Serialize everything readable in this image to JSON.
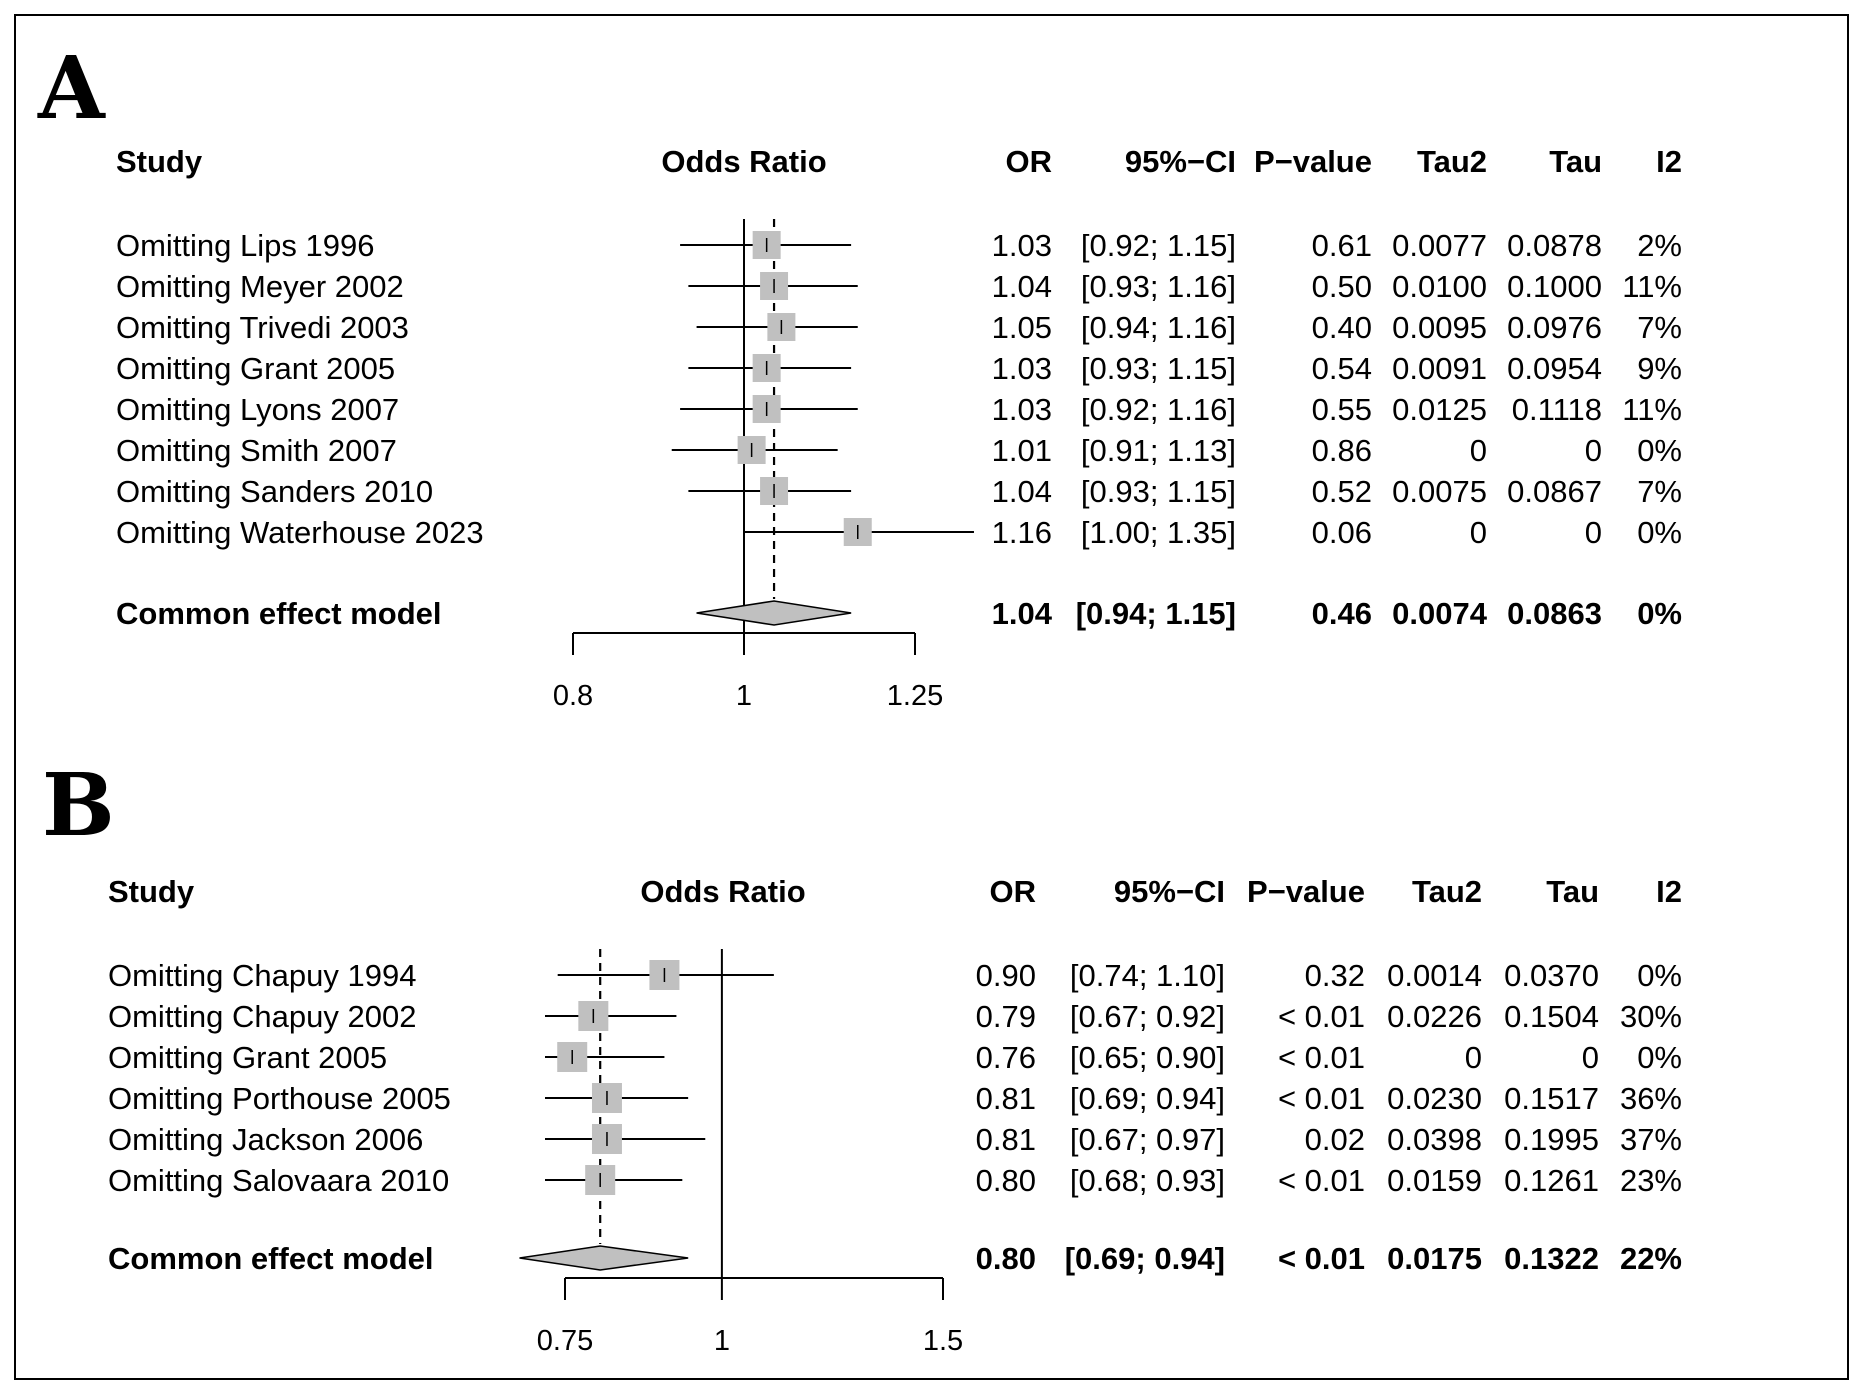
{
  "chart_data": [
    {
      "type": "forest",
      "panel": "A",
      "headers": {
        "study": "Study",
        "effect": "Odds Ratio",
        "or": "OR",
        "ci": "95%−CI",
        "p": "P−value",
        "tau2": "Tau2",
        "tau": "Tau",
        "i2": "I2"
      },
      "xscale": "log",
      "xlim": [
        0.8,
        1.25
      ],
      "xticks": [
        0.8,
        1,
        1.25
      ],
      "xtick_labels": [
        "0.8",
        "1",
        "1.25"
      ],
      "null_value": 1,
      "rows": [
        {
          "label": "Omitting Lips 1996",
          "or": 1.03,
          "lo": 0.92,
          "hi": 1.15,
          "or_text": "1.03",
          "ci_text": "[0.92; 1.15]",
          "p_text": "0.61",
          "tau2_text": "0.0077",
          "tau_text": "0.0878",
          "i2_text": "2%"
        },
        {
          "label": "Omitting Meyer 2002",
          "or": 1.04,
          "lo": 0.93,
          "hi": 1.16,
          "or_text": "1.04",
          "ci_text": "[0.93; 1.16]",
          "p_text": "0.50",
          "tau2_text": "0.0100",
          "tau_text": "0.1000",
          "i2_text": "11%"
        },
        {
          "label": "Omitting Trivedi 2003",
          "or": 1.05,
          "lo": 0.94,
          "hi": 1.16,
          "or_text": "1.05",
          "ci_text": "[0.94; 1.16]",
          "p_text": "0.40",
          "tau2_text": "0.0095",
          "tau_text": "0.0976",
          "i2_text": "7%"
        },
        {
          "label": "Omitting Grant 2005",
          "or": 1.03,
          "lo": 0.93,
          "hi": 1.15,
          "or_text": "1.03",
          "ci_text": "[0.93; 1.15]",
          "p_text": "0.54",
          "tau2_text": "0.0091",
          "tau_text": "0.0954",
          "i2_text": "9%"
        },
        {
          "label": "Omitting Lyons 2007",
          "or": 1.03,
          "lo": 0.92,
          "hi": 1.16,
          "or_text": "1.03",
          "ci_text": "[0.92; 1.16]",
          "p_text": "0.55",
          "tau2_text": "0.0125",
          "tau_text": "0.1118",
          "i2_text": "11%"
        },
        {
          "label": "Omitting Smith 2007",
          "or": 1.01,
          "lo": 0.91,
          "hi": 1.13,
          "or_text": "1.01",
          "ci_text": "[0.91; 1.13]",
          "p_text": "0.86",
          "tau2_text": "0",
          "tau_text": "0",
          "i2_text": "0%"
        },
        {
          "label": "Omitting Sanders 2010",
          "or": 1.04,
          "lo": 0.93,
          "hi": 1.15,
          "or_text": "1.04",
          "ci_text": "[0.93; 1.15]",
          "p_text": "0.52",
          "tau2_text": "0.0075",
          "tau_text": "0.0867",
          "i2_text": "7%"
        },
        {
          "label": "Omitting Waterhouse 2023",
          "or": 1.16,
          "lo": 1.0,
          "hi": 1.35,
          "or_text": "1.16",
          "ci_text": "[1.00; 1.35]",
          "p_text": "0.06",
          "tau2_text": "0",
          "tau_text": "0",
          "i2_text": "0%"
        }
      ],
      "summary": {
        "label": "Common effect model",
        "or": 1.04,
        "lo": 0.94,
        "hi": 1.15,
        "or_text": "1.04",
        "ci_text": "[0.94; 1.15]",
        "p_text": "0.46",
        "tau2_text": "0.0074",
        "tau_text": "0.0863",
        "i2_text": "0%"
      }
    },
    {
      "type": "forest",
      "panel": "B",
      "headers": {
        "study": "Study",
        "effect": "Odds Ratio",
        "or": "OR",
        "ci": "95%−CI",
        "p": "P−value",
        "tau2": "Tau2",
        "tau": "Tau",
        "i2": "I2"
      },
      "xscale": "log",
      "xlim": [
        0.75,
        1.5
      ],
      "xticks": [
        0.75,
        1,
        1.5
      ],
      "xtick_labels": [
        "0.75",
        "1",
        "1.5"
      ],
      "null_value": 1,
      "rows": [
        {
          "label": "Omitting Chapuy 1994",
          "or": 0.9,
          "lo": 0.74,
          "hi": 1.1,
          "or_text": "0.90",
          "ci_text": "[0.74; 1.10]",
          "p_text": "0.32",
          "tau2_text": "0.0014",
          "tau_text": "0.0370",
          "i2_text": "0%"
        },
        {
          "label": "Omitting Chapuy 2002",
          "or": 0.79,
          "lo": 0.67,
          "hi": 0.92,
          "or_text": "0.79",
          "ci_text": "[0.67; 0.92]",
          "p_text": "< 0.01",
          "tau2_text": "0.0226",
          "tau_text": "0.1504",
          "i2_text": "30%"
        },
        {
          "label": "Omitting Grant 2005",
          "or": 0.76,
          "lo": 0.65,
          "hi": 0.9,
          "or_text": "0.76",
          "ci_text": "[0.65; 0.90]",
          "p_text": "< 0.01",
          "tau2_text": "0",
          "tau_text": "0",
          "i2_text": "0%"
        },
        {
          "label": "Omitting Porthouse 2005",
          "or": 0.81,
          "lo": 0.69,
          "hi": 0.94,
          "or_text": "0.81",
          "ci_text": "[0.69; 0.94]",
          "p_text": "< 0.01",
          "tau2_text": "0.0230",
          "tau_text": "0.1517",
          "i2_text": "36%"
        },
        {
          "label": "Omitting Jackson 2006",
          "or": 0.81,
          "lo": 0.67,
          "hi": 0.97,
          "or_text": "0.81",
          "ci_text": "[0.67; 0.97]",
          "p_text": "0.02",
          "tau2_text": "0.0398",
          "tau_text": "0.1995",
          "i2_text": "37%"
        },
        {
          "label": "Omitting Salovaara 2010",
          "or": 0.8,
          "lo": 0.68,
          "hi": 0.93,
          "or_text": "0.80",
          "ci_text": "[0.68; 0.93]",
          "p_text": "< 0.01",
          "tau2_text": "0.0159",
          "tau_text": "0.1261",
          "i2_text": "23%"
        }
      ],
      "summary": {
        "label": "Common effect model",
        "or": 0.8,
        "lo": 0.69,
        "hi": 0.94,
        "or_text": "0.80",
        "ci_text": "[0.69; 0.94]",
        "p_text": "< 0.01",
        "tau2_text": "0.0175",
        "tau_text": "0.1322",
        "i2_text": "22%"
      }
    }
  ],
  "colors": {
    "box": "#c0c0c0",
    "diamond": "#c0c0c0",
    "ink": "#000000"
  }
}
